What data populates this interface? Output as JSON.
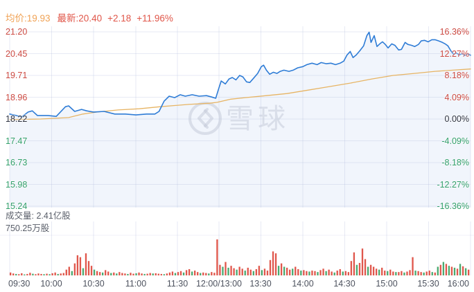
{
  "header": {
    "avg_label": "均价:19.93",
    "latest_label": "最新:20.40",
    "change": "+2.18",
    "change_pct": "+11.96%"
  },
  "watermark": {
    "text": "雪球"
  },
  "volume_panel": {
    "total": "成交量: 2.41亿股",
    "max_label": "750.25万股"
  },
  "chart_data": {
    "type": "line",
    "prev_close": 18.22,
    "latest_price": 20.4,
    "avg_price": 19.93,
    "price_axis_labels": [
      "21.20",
      "20.45",
      "19.71",
      "18.96",
      "18.22",
      "17.47",
      "16.73",
      "15.98",
      "15.24"
    ],
    "pct_axis_labels": [
      "16.36%",
      "12.27%",
      "8.18%",
      "4.09%",
      "0.00%",
      "-4.09%",
      "-8.18%",
      "-12.27%",
      "-16.36%"
    ],
    "time_axis_labels": [
      "09:30",
      "10:00",
      "10:30",
      "11:00",
      "11:30",
      "12:00/13:00",
      "13:30",
      "14:00",
      "14:30",
      "15:00",
      "15:30",
      "16:00"
    ],
    "pct_axis_range": [
      -16.36,
      16.36
    ],
    "grid": true,
    "series": [
      {
        "name": "price",
        "color": "#2e7cd6",
        "points": [
          [
            0.0,
            18.39
          ],
          [
            0.014,
            18.34
          ],
          [
            0.026,
            18.29
          ],
          [
            0.04,
            18.46
          ],
          [
            0.049,
            18.5
          ],
          [
            0.06,
            18.34
          ],
          [
            0.083,
            18.34
          ],
          [
            0.101,
            18.31
          ],
          [
            0.121,
            18.64
          ],
          [
            0.128,
            18.67
          ],
          [
            0.141,
            18.48
          ],
          [
            0.156,
            18.55
          ],
          [
            0.167,
            18.5
          ],
          [
            0.182,
            18.46
          ],
          [
            0.205,
            18.48
          ],
          [
            0.228,
            18.39
          ],
          [
            0.251,
            18.39
          ],
          [
            0.274,
            18.36
          ],
          [
            0.297,
            18.39
          ],
          [
            0.315,
            18.39
          ],
          [
            0.324,
            18.48
          ],
          [
            0.335,
            18.83
          ],
          [
            0.346,
            19.0
          ],
          [
            0.358,
            18.95
          ],
          [
            0.37,
            19.05
          ],
          [
            0.381,
            19.0
          ],
          [
            0.396,
            19.05
          ],
          [
            0.411,
            19.0
          ],
          [
            0.427,
            19.02
          ],
          [
            0.439,
            18.97
          ],
          [
            0.447,
            18.93
          ],
          [
            0.453,
            19.23
          ],
          [
            0.459,
            19.52
          ],
          [
            0.468,
            19.42
          ],
          [
            0.476,
            19.59
          ],
          [
            0.483,
            19.64
          ],
          [
            0.491,
            19.56
          ],
          [
            0.499,
            19.71
          ],
          [
            0.506,
            19.66
          ],
          [
            0.514,
            19.49
          ],
          [
            0.521,
            19.47
          ],
          [
            0.529,
            19.61
          ],
          [
            0.538,
            19.78
          ],
          [
            0.546,
            20.01
          ],
          [
            0.551,
            20.06
          ],
          [
            0.557,
            19.89
          ],
          [
            0.564,
            19.75
          ],
          [
            0.572,
            19.82
          ],
          [
            0.58,
            19.78
          ],
          [
            0.587,
            19.85
          ],
          [
            0.595,
            19.89
          ],
          [
            0.606,
            19.85
          ],
          [
            0.615,
            19.89
          ],
          [
            0.625,
            19.97
          ],
          [
            0.636,
            20.01
          ],
          [
            0.645,
            20.08
          ],
          [
            0.656,
            20.13
          ],
          [
            0.667,
            20.08
          ],
          [
            0.676,
            20.15
          ],
          [
            0.687,
            20.11
          ],
          [
            0.697,
            20.13
          ],
          [
            0.707,
            20.08
          ],
          [
            0.717,
            20.13
          ],
          [
            0.725,
            20.2
          ],
          [
            0.732,
            20.41
          ],
          [
            0.739,
            20.53
          ],
          [
            0.745,
            20.32
          ],
          [
            0.752,
            20.41
          ],
          [
            0.76,
            20.56
          ],
          [
            0.768,
            20.72
          ],
          [
            0.775,
            21.07
          ],
          [
            0.78,
            21.19
          ],
          [
            0.784,
            20.84
          ],
          [
            0.791,
            21.07
          ],
          [
            0.797,
            20.7
          ],
          [
            0.803,
            20.79
          ],
          [
            0.809,
            20.86
          ],
          [
            0.815,
            20.77
          ],
          [
            0.821,
            20.65
          ],
          [
            0.829,
            20.79
          ],
          [
            0.836,
            20.74
          ],
          [
            0.844,
            20.58
          ],
          [
            0.85,
            20.6
          ],
          [
            0.858,
            20.84
          ],
          [
            0.864,
            20.77
          ],
          [
            0.872,
            20.74
          ],
          [
            0.879,
            20.7
          ],
          [
            0.887,
            20.77
          ],
          [
            0.893,
            20.89
          ],
          [
            0.9,
            20.91
          ],
          [
            0.908,
            20.86
          ],
          [
            0.916,
            20.93
          ],
          [
            0.923,
            20.93
          ],
          [
            0.931,
            20.89
          ],
          [
            0.939,
            20.84
          ],
          [
            0.945,
            20.79
          ],
          [
            0.951,
            20.72
          ],
          [
            0.957,
            20.56
          ],
          [
            0.963,
            20.44
          ],
          [
            0.969,
            20.48
          ],
          [
            0.976,
            20.41
          ],
          [
            0.982,
            20.46
          ],
          [
            0.988,
            20.39
          ],
          [
            0.994,
            20.45
          ],
          [
            1.0,
            20.4
          ]
        ]
      },
      {
        "name": "avg",
        "color": "#e7b463",
        "points": [
          [
            0.0,
            18.2
          ],
          [
            0.067,
            18.22
          ],
          [
            0.128,
            18.27
          ],
          [
            0.159,
            18.39
          ],
          [
            0.19,
            18.46
          ],
          [
            0.235,
            18.53
          ],
          [
            0.281,
            18.57
          ],
          [
            0.327,
            18.64
          ],
          [
            0.388,
            18.72
          ],
          [
            0.434,
            18.76
          ],
          [
            0.45,
            18.79
          ],
          [
            0.48,
            18.9
          ],
          [
            0.511,
            18.95
          ],
          [
            0.557,
            19.02
          ],
          [
            0.602,
            19.09
          ],
          [
            0.648,
            19.21
          ],
          [
            0.694,
            19.33
          ],
          [
            0.74,
            19.45
          ],
          [
            0.786,
            19.59
          ],
          [
            0.832,
            19.71
          ],
          [
            0.878,
            19.78
          ],
          [
            0.923,
            19.85
          ],
          [
            0.962,
            19.89
          ],
          [
            1.0,
            19.93
          ]
        ]
      }
    ],
    "volume": {
      "unit": "万股",
      "max_value": 750.25,
      "bars": [
        60,
        40,
        -30,
        25,
        45,
        -20,
        30,
        55,
        -35,
        25,
        40,
        30,
        -25,
        35,
        -25,
        45,
        60,
        -30,
        40,
        50,
        120,
        180,
        -90,
        250,
        420,
        380,
        -150,
        460,
        300,
        200,
        -120,
        90,
        70,
        -60,
        110,
        80,
        -50,
        60,
        -40,
        70,
        50,
        40,
        -30,
        55,
        35,
        -45,
        60,
        40,
        -30,
        35,
        50,
        -40,
        45,
        35,
        30,
        -25,
        40,
        60,
        80,
        -50,
        70,
        90,
        -60,
        110,
        130,
        -80,
        100,
        70,
        -50,
        60,
        50,
        -40,
        70,
        55,
        750,
        220,
        -180,
        280,
        -160,
        200,
        150,
        -120,
        180,
        140,
        -100,
        160,
        120,
        -90,
        130,
        200,
        -110,
        140,
        100,
        320,
        500,
        460,
        -200,
        250,
        -180,
        160,
        120,
        -140,
        180,
        130,
        -100,
        110,
        90,
        -80,
        100,
        90,
        -70,
        110,
        140,
        -90,
        120,
        80,
        -60,
        100,
        130,
        -80,
        90,
        70,
        300,
        480,
        -220,
        260,
        560,
        340,
        -180,
        220,
        180,
        140,
        -120,
        160,
        100,
        -90,
        120,
        80,
        -70,
        70,
        90,
        -60,
        80,
        110,
        380,
        -100,
        90,
        70,
        -60,
        80,
        100,
        -70,
        60,
        -180,
        220,
        -280,
        240,
        -200,
        180,
        -160,
        140,
        -240,
        190,
        -150,
        120
      ]
    },
    "colors": {
      "up_text": "#cc4a42",
      "down_text": "#33a06b",
      "flat_text": "#2f3340",
      "price_line": "#2e7cd6",
      "avg_line": "#e7b463",
      "area_fill": "rgba(62,122,216,0.075)",
      "vol_up": "#e0574c",
      "vol_down": "#4aaa70",
      "grid": "rgba(170,180,215,0.28)"
    }
  }
}
